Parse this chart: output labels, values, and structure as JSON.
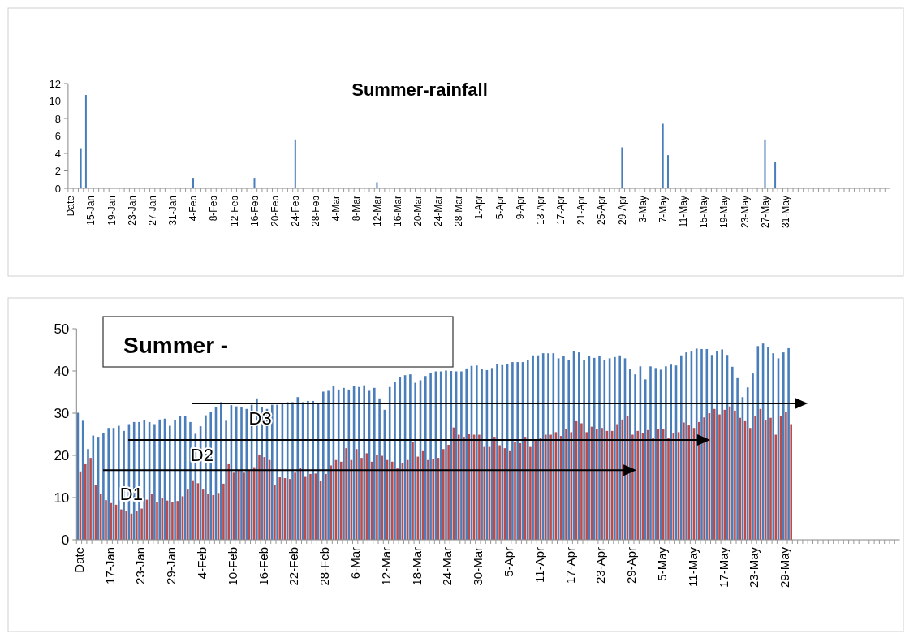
{
  "chart_data": [
    {
      "type": "bar",
      "title": "Summer-rainfall",
      "categories": [
        "Date",
        null,
        null,
        null,
        "15-Jan",
        null,
        null,
        null,
        "19-Jan",
        null,
        null,
        null,
        "23-Jan",
        null,
        null,
        null,
        "27-Jan",
        null,
        null,
        null,
        "31-Jan",
        null,
        null,
        null,
        "4-Feb",
        null,
        null,
        null,
        "8-Feb",
        null,
        null,
        null,
        "12-Feb",
        null,
        null,
        null,
        "16-Feb",
        null,
        null,
        null,
        "20-Feb",
        null,
        null,
        null,
        "24-Feb",
        null,
        null,
        null,
        "28-Feb",
        null,
        null,
        null,
        "4-Mar",
        null,
        null,
        null,
        "8-Mar",
        null,
        null,
        null,
        "12-Mar",
        null,
        null,
        null,
        "16-Mar",
        null,
        null,
        null,
        "20-Mar",
        null,
        null,
        null,
        "24-Mar",
        null,
        null,
        null,
        "28-Mar",
        null,
        null,
        null,
        "1-Apr",
        null,
        null,
        null,
        "5-Apr",
        null,
        null,
        null,
        "9-Apr",
        null,
        null,
        null,
        "13-Apr",
        null,
        null,
        null,
        "17-Apr",
        null,
        null,
        null,
        "21-Apr",
        null,
        null,
        null,
        "25-Apr",
        null,
        null,
        null,
        "29-Apr",
        null,
        null,
        null,
        "3-May",
        null,
        null,
        null,
        "7-May",
        null,
        null,
        null,
        "11-May",
        null,
        null,
        null,
        "15-May",
        null,
        null,
        null,
        "19-May",
        null,
        null,
        null,
        "23-May",
        null,
        null,
        null,
        "27-May",
        null,
        null,
        null,
        "31-May",
        null,
        null,
        null,
        null,
        null,
        null,
        null,
        null,
        null,
        null,
        null,
        null,
        null,
        null,
        null,
        null,
        null,
        null,
        null,
        null
      ],
      "values": [
        0,
        0,
        4.6,
        10.7,
        0,
        0,
        0,
        0,
        0,
        0,
        0,
        0,
        0,
        0,
        0,
        0,
        0,
        0,
        0,
        0,
        0,
        0,
        0,
        0,
        1.2,
        0,
        0,
        0,
        0,
        0,
        0,
        0,
        0,
        0,
        0,
        0,
        1.2,
        0,
        0,
        0,
        0,
        0,
        0,
        0,
        5.6,
        0,
        0,
        0,
        0,
        0,
        0,
        0,
        0,
        0,
        0,
        0,
        0,
        0,
        0,
        0,
        0.7,
        0,
        0,
        0,
        0,
        0,
        0,
        0,
        0,
        0,
        0,
        0,
        0,
        0,
        0,
        0,
        0,
        0,
        0,
        0,
        0,
        0,
        0,
        0,
        0,
        0,
        0,
        0,
        0,
        0,
        0,
        0,
        0,
        0,
        0,
        0,
        0,
        0,
        0,
        0,
        0,
        0,
        0,
        0,
        0,
        0,
        0,
        0,
        4.7,
        0,
        0,
        0,
        0,
        0,
        0,
        0,
        7.4,
        3.8,
        0,
        0,
        0,
        0,
        0,
        0,
        0,
        0,
        0,
        0,
        0,
        0,
        0,
        0,
        0,
        0,
        0,
        0,
        5.6,
        0,
        3.0,
        0,
        0,
        null,
        null,
        null,
        null,
        null,
        null,
        null,
        null,
        null,
        null,
        null,
        null,
        null,
        null,
        null,
        null,
        null,
        null,
        null,
        null
      ],
      "color": "#4a7ebb",
      "ylim": [
        0,
        12
      ],
      "yticks": [
        0,
        2,
        4,
        6,
        8,
        10,
        12
      ]
    },
    {
      "type": "bar",
      "title": "Summer -",
      "categories": [
        "Date",
        null,
        null,
        null,
        null,
        null,
        "17-Jan",
        null,
        null,
        null,
        null,
        null,
        "23-Jan",
        null,
        null,
        null,
        null,
        null,
        "29-Jan",
        null,
        null,
        null,
        null,
        null,
        "4-Feb",
        null,
        null,
        null,
        null,
        null,
        "10-Feb",
        null,
        null,
        null,
        null,
        null,
        "16-Feb",
        null,
        null,
        null,
        null,
        null,
        "22-Feb",
        null,
        null,
        null,
        null,
        null,
        "28-Feb",
        null,
        null,
        null,
        null,
        null,
        "6-Mar",
        null,
        null,
        null,
        null,
        null,
        "12-Mar",
        null,
        null,
        null,
        null,
        null,
        "18-Mar",
        null,
        null,
        null,
        null,
        null,
        "24-Mar",
        null,
        null,
        null,
        null,
        null,
        "30-Mar",
        null,
        null,
        null,
        null,
        null,
        "5-Apr",
        null,
        null,
        null,
        null,
        null,
        "11-Apr",
        null,
        null,
        null,
        null,
        null,
        "17-Apr",
        null,
        null,
        null,
        null,
        null,
        "23-Apr",
        null,
        null,
        null,
        null,
        null,
        "29-Apr",
        null,
        null,
        null,
        null,
        null,
        "5-May",
        null,
        null,
        null,
        null,
        null,
        "11-May",
        null,
        null,
        null,
        null,
        null,
        "17-May",
        null,
        null,
        null,
        null,
        null,
        "23-May",
        null,
        null,
        null,
        null,
        null,
        "29-May",
        null,
        null,
        null,
        null,
        null,
        null,
        null,
        null,
        null,
        null,
        null,
        null,
        null,
        null,
        null,
        null,
        null,
        null,
        null,
        null,
        null,
        null
      ],
      "series": [
        {
          "color": "#4a7ebb",
          "values": [
            30.1,
            28.2,
            21.5,
            24.7,
            24.4,
            25.2,
            26.5,
            26.5,
            27.0,
            25.8,
            27.4,
            27.9,
            27.9,
            28.4,
            27.9,
            27.4,
            28.5,
            28.7,
            27.0,
            28.4,
            29.4,
            29.4,
            27.9,
            25.1,
            26.9,
            29.5,
            30.2,
            31.4,
            32.6,
            28.2,
            31.9,
            31.6,
            31.5,
            31.0,
            32.0,
            33.5,
            31.5,
            31.0,
            32.0,
            32.0,
            32.5,
            32.6,
            32.6,
            33.8,
            32.6,
            32.9,
            32.9,
            32.4,
            35.1,
            35.3,
            36.5,
            35.6,
            36.0,
            35.6,
            36.5,
            36.2,
            36.6,
            35.3,
            36.0,
            33.5,
            30.8,
            36.2,
            37.5,
            38.5,
            39.0,
            39.2,
            37.2,
            37.8,
            38.8,
            39.6,
            39.9,
            39.9,
            40.1,
            40.0,
            39.9,
            39.9,
            40.6,
            41.2,
            41.3,
            40.4,
            40.2,
            40.7,
            41.7,
            41.4,
            41.7,
            42.1,
            42.1,
            42.1,
            42.5,
            43.7,
            43.7,
            44.2,
            44.2,
            44.2,
            43.0,
            43.6,
            42.7,
            44.7,
            44.4,
            42.5,
            43.6,
            43.1,
            43.6,
            42.5,
            43.0,
            43.3,
            43.7,
            43.0,
            40.4,
            39.2,
            41.1,
            38.0,
            41.1,
            40.7,
            40.3,
            41.1,
            41.5,
            41.3,
            43.7,
            44.4,
            44.6,
            45.3,
            45.2,
            45.2,
            43.8,
            44.7,
            45.1,
            43.8,
            41.0,
            38.3,
            33.8,
            36.1,
            39.4,
            45.9,
            46.5,
            45.6,
            44.2,
            43.0,
            44.4,
            45.4,
            null,
            null,
            null,
            null,
            null,
            null,
            null,
            null,
            null,
            null,
            null,
            null,
            null,
            null,
            null,
            null,
            null,
            null,
            null,
            null,
            null
          ]
        },
        {
          "color": "#be4b48",
          "values": [
            16.2,
            17.9,
            19.4,
            13.0,
            10.8,
            9.4,
            8.7,
            8.3,
            7.2,
            6.9,
            6.2,
            6.9,
            7.4,
            9.5,
            10.8,
            9.0,
            9.8,
            9.3,
            9.0,
            9.2,
            10.3,
            11.9,
            14.1,
            13.4,
            11.9,
            10.8,
            10.6,
            11.1,
            13.3,
            17.9,
            15.9,
            16.5,
            15.9,
            16.5,
            17.2,
            20.2,
            19.6,
            18.9,
            13.0,
            14.8,
            14.6,
            14.4,
            15.9,
            17.0,
            14.9,
            15.6,
            15.7,
            14.0,
            15.6,
            17.6,
            18.9,
            18.5,
            21.7,
            18.9,
            21.5,
            19.4,
            20.5,
            18.5,
            20.1,
            19.9,
            18.9,
            18.5,
            16.9,
            18.1,
            18.9,
            23.1,
            19.7,
            21.0,
            18.9,
            19.1,
            19.4,
            21.5,
            22.5,
            26.6,
            24.9,
            24.4,
            25.0,
            24.9,
            24.9,
            22.0,
            22.0,
            24.4,
            22.4,
            21.7,
            21.0,
            23.1,
            22.9,
            24.4,
            22.0,
            23.6,
            24.1,
            24.9,
            24.9,
            25.5,
            24.6,
            26.2,
            25.5,
            28.1,
            27.6,
            25.5,
            26.8,
            26.2,
            26.5,
            25.8,
            25.8,
            27.4,
            28.5,
            29.4,
            24.9,
            25.8,
            25.3,
            26.0,
            24.2,
            26.2,
            26.2,
            24.2,
            25.2,
            25.5,
            27.8,
            27.1,
            26.5,
            27.9,
            29.0,
            30.0,
            31.0,
            29.7,
            30.8,
            31.6,
            30.6,
            28.9,
            28.1,
            26.5,
            29.4,
            31.0,
            28.4,
            28.9,
            24.9,
            29.4,
            30.2,
            27.4,
            null,
            null,
            null,
            null,
            null,
            null,
            null,
            null,
            null,
            null,
            null,
            null,
            null,
            null,
            null,
            null,
            null,
            null,
            null,
            null,
            null
          ]
        }
      ],
      "ylim": [
        0,
        50
      ],
      "yticks": [
        0,
        10,
        20,
        30,
        40,
        50
      ],
      "annotations": [
        "D1",
        "D2",
        "D3"
      ]
    }
  ]
}
